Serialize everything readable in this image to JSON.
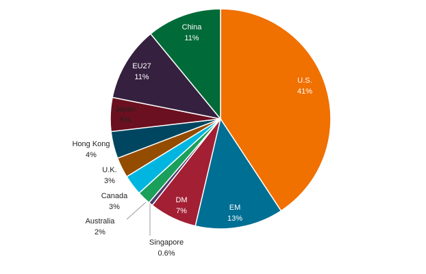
{
  "chart_data": {
    "type": "pie",
    "categories": [
      "U.S.",
      "EM",
      "DM",
      "Singapore",
      "Australia",
      "Canada",
      "U.K.",
      "Hong Kong",
      "Japan",
      "EU27",
      "China"
    ],
    "values": [
      41,
      13,
      7,
      0.6,
      2,
      3,
      3,
      4,
      5,
      11,
      11
    ],
    "value_labels": [
      "41%",
      "13%",
      "7%",
      "0.6%",
      "2%",
      "3%",
      "3%",
      "4%",
      "5%",
      "11%",
      "11%"
    ],
    "colors": [
      "#f07000",
      "#006f94",
      "#a31f34",
      "#4e3a6e",
      "#1aa05a",
      "#00b6e0",
      "#944c00",
      "#004660",
      "#6b1020",
      "#35203f",
      "#006a38"
    ]
  }
}
